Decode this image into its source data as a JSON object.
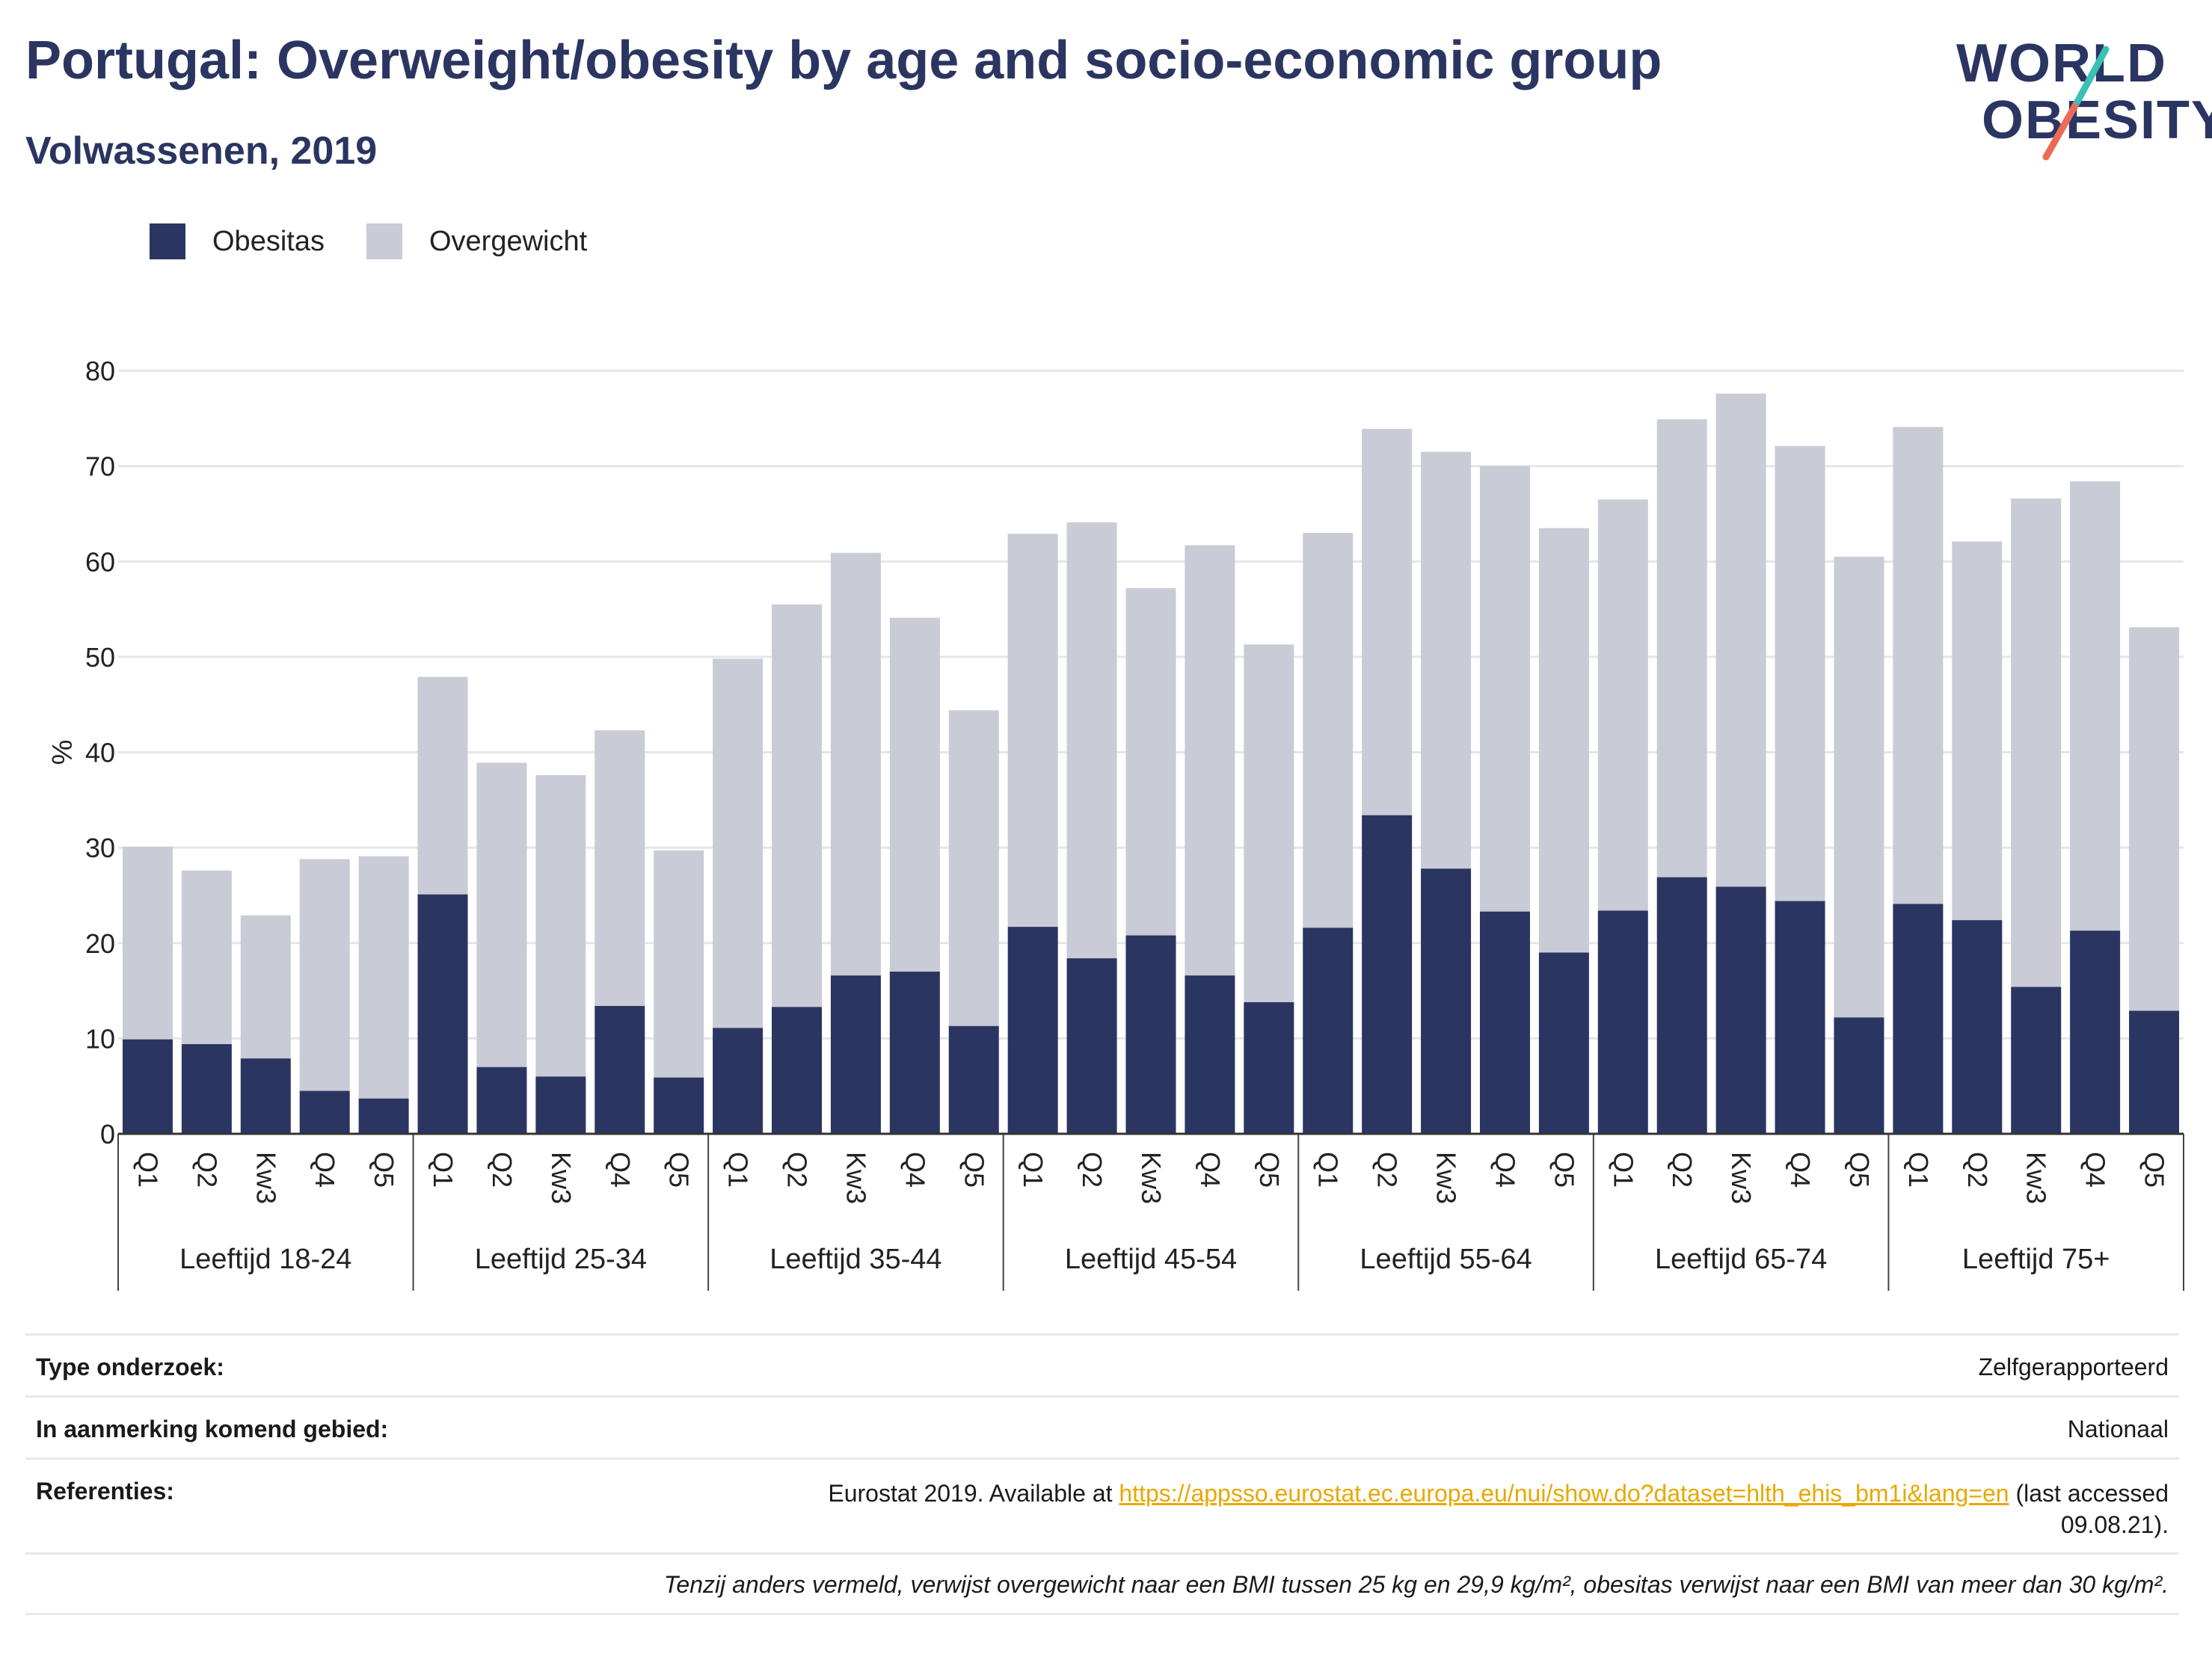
{
  "title": "Portugal: Overweight/obesity by age and socio-economic group",
  "subtitle": "Volwassenen, 2019",
  "logo": {
    "line1": "WORLD",
    "line2": "OBESITY"
  },
  "colors": {
    "brand": "#2b3561",
    "obesity": "#2b3561",
    "overweight": "#c9cbd6",
    "teal": "#3cbfb4",
    "coral": "#ec6b58",
    "link": "#e8a800",
    "grid": "#e6e6ea"
  },
  "legend": [
    {
      "label": "Obesitas",
      "color": "#2b3561"
    },
    {
      "label": "Overgewicht",
      "color": "#c9cbd6"
    }
  ],
  "chart_data": {
    "type": "bar",
    "stacked": true,
    "ylabel": "%",
    "ylim": [
      0,
      80
    ],
    "yticks": [
      0,
      10,
      20,
      30,
      40,
      50,
      60,
      70,
      80
    ],
    "grid": true,
    "legend_position": "top-left",
    "groups": [
      "Leeftijd 18-24",
      "Leeftijd 25-34",
      "Leeftijd 35-44",
      "Leeftijd 45-54",
      "Leeftijd 55-64",
      "Leeftijd 65-74",
      "Leeftijd 75+"
    ],
    "quintiles": [
      "Q1",
      "Q2",
      "Kw3",
      "Q4",
      "Q5"
    ],
    "series": [
      {
        "name": "Obesitas",
        "values": [
          9.9,
          9.4,
          7.9,
          4.5,
          3.7,
          25.1,
          7.0,
          6.0,
          13.4,
          5.9,
          11.1,
          13.3,
          16.6,
          17.0,
          11.3,
          21.7,
          18.4,
          20.8,
          16.6,
          13.8,
          21.6,
          33.4,
          27.8,
          23.3,
          19.0,
          23.4,
          26.9,
          25.9,
          24.4,
          12.2,
          24.1,
          22.4,
          15.4,
          21.3,
          12.9
        ]
      },
      {
        "name": "Overgewicht",
        "values": [
          20.2,
          18.2,
          15.0,
          24.3,
          25.4,
          22.8,
          31.9,
          31.6,
          28.9,
          23.8,
          38.7,
          42.2,
          44.3,
          37.1,
          33.1,
          41.2,
          45.7,
          36.4,
          45.1,
          37.5,
          41.4,
          40.5,
          43.7,
          46.7,
          44.5,
          43.1,
          48.0,
          51.7,
          47.7,
          48.3,
          50.0,
          39.7,
          51.2,
          47.1,
          40.2
        ]
      }
    ]
  },
  "info": {
    "rows": [
      {
        "key": "Type onderzoek:",
        "value": "Zelfgerapporteerd"
      },
      {
        "key": "In aanmerking komend gebied:",
        "value": "Nationaal"
      }
    ],
    "references": {
      "key": "Referenties:",
      "prefix": "Eurostat 2019. Available at ",
      "link": "https://appsso.eurostat.ec.europa.eu/nui/show.do?dataset=hlth_ehis_bm1i&lang=en",
      "suffix": " (last accessed",
      "line2": "09.08.21)."
    },
    "note": "Tenzij anders vermeld, verwijst overgewicht naar een BMI tussen 25 kg en 29,9 kg/m², obesitas verwijst naar een BMI van meer dan 30 kg/m²."
  }
}
